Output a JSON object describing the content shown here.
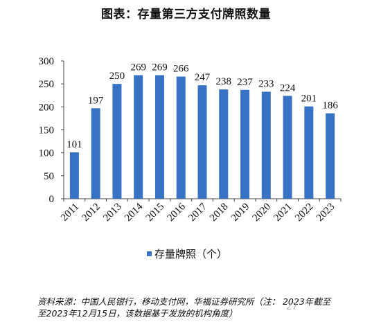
{
  "title": "图表：存量第三方支付牌照数量",
  "chart_data": {
    "type": "bar",
    "categories": [
      "2011",
      "2012",
      "2013",
      "2014",
      "2015",
      "2016",
      "2017",
      "2018",
      "2019",
      "2020",
      "2021",
      "2022",
      "2023"
    ],
    "series": [
      {
        "name": "存量牌照（个）",
        "values": [
          101,
          197,
          250,
          269,
          269,
          266,
          247,
          238,
          237,
          233,
          224,
          201,
          186
        ],
        "color": "#3772c4"
      }
    ],
    "ylim": [
      0,
      300
    ],
    "yticks": [
      0,
      50,
      100,
      150,
      200,
      250,
      300
    ],
    "grid": false,
    "legend_position": "bottom",
    "xlabel": "",
    "ylabel": ""
  },
  "legend": {
    "label": "存量牌照（个）"
  },
  "source": {
    "line1": "资料来源：中国人民银行，移动支付网，华福证券研究所（注：  2023年截至",
    "line2": "至2023年12月15日，该数据基于发放的机构角度）"
  },
  "page_number": "27"
}
